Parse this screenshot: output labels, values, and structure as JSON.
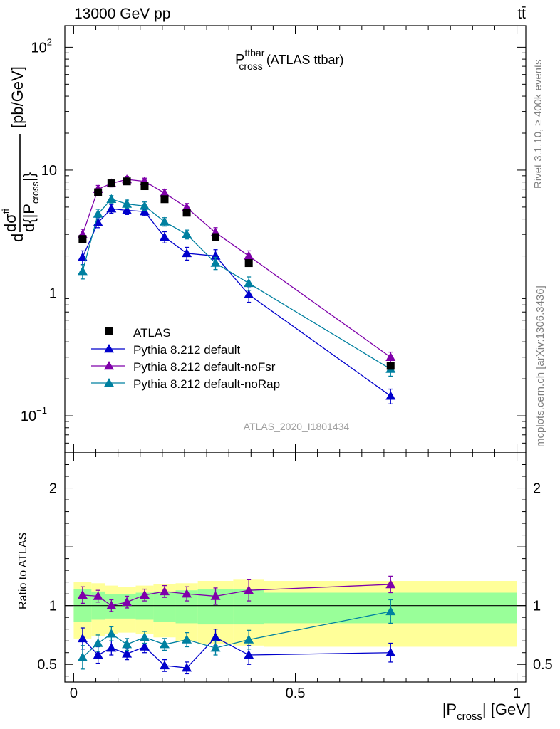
{
  "header": {
    "energy": "13000 GeV pp",
    "process": "tt̄"
  },
  "side_labels": {
    "rivet": "Rivet 3.1.10, ≥ 400k events",
    "mcplots": "mcplots.cern.ch [arXiv:1306.3436]"
  },
  "watermark": "ATLAS_2020_I1801434",
  "colors": {
    "data": "#000000",
    "default": "#0000cc",
    "noFsr": "#7f00aa",
    "noRap": "#0080a0",
    "band_inner": "#99ff99",
    "band_outer": "#ffff99"
  },
  "chart_data": [
    {
      "type": "line",
      "title": "P_cross^ttbar (ATLAS ttbar)",
      "title_parts": {
        "main": "P",
        "sup": "ttbar",
        "sub": "cross",
        "rest": " (ATLAS ttbar)"
      },
      "ylabel": "dσ^tt̄ / d{|P_cross|} [pb/GeV]",
      "yscale": "log",
      "ylim": [
        0.05,
        150
      ],
      "xlim": [
        -0.02,
        1.02
      ],
      "yticks": [
        {
          "value": 0.1,
          "base": "10",
          "exp": "−1"
        },
        {
          "value": 1,
          "base": "1",
          "exp": ""
        },
        {
          "value": 10,
          "base": "10",
          "exp": ""
        },
        {
          "value": 100,
          "base": "10",
          "exp": "2"
        }
      ],
      "x": [
        0.02,
        0.055,
        0.085,
        0.12,
        0.16,
        0.205,
        0.255,
        0.32,
        0.395,
        0.715
      ],
      "series": [
        {
          "name": "ATLAS",
          "marker": "square",
          "color": "#000000",
          "values": [
            2.75,
            6.6,
            7.8,
            8.1,
            7.4,
            5.8,
            4.5,
            2.85,
            1.75,
            0.255
          ]
        },
        {
          "name": "Pythia 8.212 default",
          "marker": "triangle",
          "color": "#0000cc",
          "values": [
            1.95,
            3.75,
            4.85,
            4.7,
            4.6,
            2.85,
            2.1,
            2.0,
            0.97,
            0.145
          ],
          "errors": [
            0.25,
            0.35,
            0.4,
            0.35,
            0.35,
            0.3,
            0.25,
            0.25,
            0.13,
            0.02
          ]
        },
        {
          "name": "Pythia 8.212 default-noFsr",
          "marker": "triangle",
          "color": "#7f00aa",
          "values": [
            3.0,
            7.0,
            7.8,
            8.4,
            8.1,
            6.5,
            4.95,
            3.1,
            2.0,
            0.3
          ],
          "errors": [
            0.3,
            0.5,
            0.5,
            0.5,
            0.5,
            0.45,
            0.4,
            0.3,
            0.2,
            0.03
          ]
        },
        {
          "name": "Pythia 8.212 default-noRap",
          "marker": "triangle",
          "color": "#0080a0",
          "values": [
            1.5,
            4.4,
            5.8,
            5.3,
            5.1,
            3.8,
            3.0,
            1.75,
            1.2,
            0.24
          ],
          "errors": [
            0.2,
            0.4,
            0.4,
            0.4,
            0.4,
            0.3,
            0.25,
            0.2,
            0.15,
            0.03
          ]
        }
      ],
      "legend": [
        "ATLAS",
        "Pythia 8.212 default",
        "Pythia 8.212 default-noFsr",
        "Pythia 8.212 default-noRap"
      ],
      "legend_position": "bottom-left"
    },
    {
      "type": "line",
      "ylabel": "Ratio to ATLAS",
      "xlabel": "|P_cross| [GeV]",
      "xlabel_parts": {
        "pre": "|P",
        "sub": "cross",
        "post": "| [GeV]"
      },
      "xlim": [
        -0.02,
        1.02
      ],
      "ylim": [
        0.35,
        2.3
      ],
      "xticks": [
        {
          "value": 0,
          "label": "0"
        },
        {
          "value": 0.5,
          "label": "0.5"
        },
        {
          "value": 1,
          "label": "1"
        }
      ],
      "yticks": [
        {
          "value": 0.5,
          "label": "0.5"
        },
        {
          "value": 1,
          "label": "1"
        },
        {
          "value": 2,
          "label": "2"
        }
      ],
      "x": [
        0.02,
        0.055,
        0.085,
        0.12,
        0.16,
        0.205,
        0.255,
        0.32,
        0.395,
        0.715
      ],
      "bins": [
        {
          "lo": 0.0,
          "hi": 0.04,
          "inner": [
            0.86,
            1.14
          ],
          "outer": [
            0.72,
            1.2
          ]
        },
        {
          "lo": 0.04,
          "hi": 0.07,
          "inner": [
            0.88,
            1.12
          ],
          "outer": [
            0.74,
            1.19
          ]
        },
        {
          "lo": 0.07,
          "hi": 0.1,
          "inner": [
            0.89,
            1.1
          ],
          "outer": [
            0.76,
            1.17
          ]
        },
        {
          "lo": 0.1,
          "hi": 0.14,
          "inner": [
            0.89,
            1.1
          ],
          "outer": [
            0.77,
            1.16
          ]
        },
        {
          "lo": 0.14,
          "hi": 0.18,
          "inner": [
            0.88,
            1.11
          ],
          "outer": [
            0.76,
            1.17
          ]
        },
        {
          "lo": 0.18,
          "hi": 0.23,
          "inner": [
            0.86,
            1.12
          ],
          "outer": [
            0.73,
            1.18
          ]
        },
        {
          "lo": 0.23,
          "hi": 0.28,
          "inner": [
            0.85,
            1.13
          ],
          "outer": [
            0.7,
            1.19
          ]
        },
        {
          "lo": 0.28,
          "hi": 0.36,
          "inner": [
            0.84,
            1.14
          ],
          "outer": [
            0.67,
            1.21
          ]
        },
        {
          "lo": 0.36,
          "hi": 0.43,
          "inner": [
            0.84,
            1.14
          ],
          "outer": [
            0.66,
            1.22
          ]
        },
        {
          "lo": 0.43,
          "hi": 1.0,
          "inner": [
            0.85,
            1.11
          ],
          "outer": [
            0.65,
            1.21
          ]
        }
      ],
      "series": [
        {
          "name": "Pythia 8.212 default",
          "color": "#0000cc",
          "values": [
            0.72,
            0.58,
            0.64,
            0.59,
            0.65,
            0.49,
            0.47,
            0.73,
            0.58,
            0.6
          ],
          "errors": [
            0.09,
            0.07,
            0.06,
            0.05,
            0.05,
            0.05,
            0.05,
            0.07,
            0.08,
            0.08
          ]
        },
        {
          "name": "Pythia 8.212 default-noFsr",
          "color": "#7f00aa",
          "values": [
            1.09,
            1.08,
            1.0,
            1.03,
            1.09,
            1.12,
            1.1,
            1.08,
            1.13,
            1.18
          ],
          "errors": [
            0.07,
            0.05,
            0.05,
            0.05,
            0.05,
            0.05,
            0.06,
            0.07,
            0.09,
            0.07
          ]
        },
        {
          "name": "Pythia 8.212 default-noRap",
          "color": "#0080a0",
          "values": [
            0.56,
            0.68,
            0.76,
            0.67,
            0.73,
            0.67,
            0.71,
            0.64,
            0.71,
            0.95
          ],
          "errors": [
            0.1,
            0.07,
            0.06,
            0.05,
            0.05,
            0.05,
            0.06,
            0.06,
            0.08,
            0.1
          ]
        }
      ]
    }
  ]
}
